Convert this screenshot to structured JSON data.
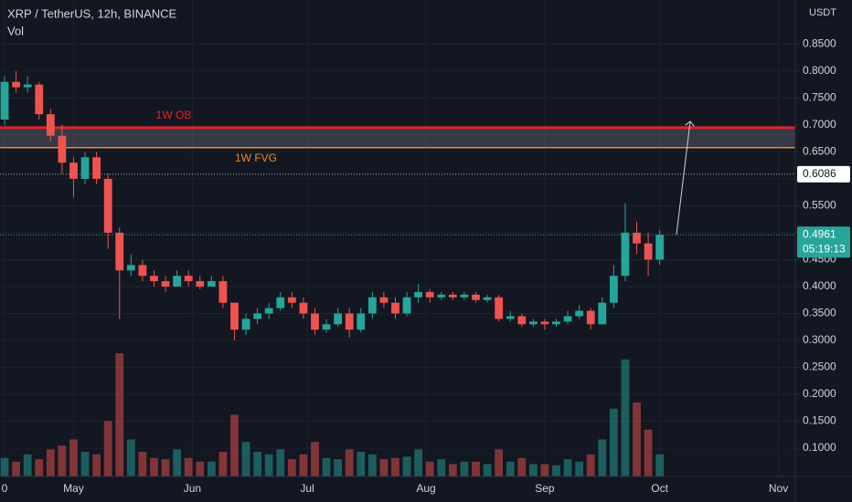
{
  "chart_data": {
    "type": "candlestick",
    "title": "XRP / TetherUS, 12h, BINANCE",
    "volume_label": "Vol",
    "currency": "USDT",
    "x": [
      0,
      3,
      6,
      9,
      12,
      15,
      18,
      21,
      24,
      27,
      30,
      33,
      36,
      39,
      42,
      45,
      48,
      51,
      54,
      57,
      60,
      63,
      66,
      69,
      72,
      75,
      78,
      81,
      84,
      87,
      90,
      93,
      96,
      99,
      102,
      105,
      108,
      111,
      114,
      117,
      120,
      123,
      126,
      129,
      132,
      135,
      138,
      141,
      144,
      147,
      150,
      153,
      156,
      159,
      162,
      165,
      168,
      171
    ],
    "open": [
      0.71,
      0.78,
      0.77,
      0.775,
      0.72,
      0.68,
      0.63,
      0.6,
      0.64,
      0.6,
      0.5,
      0.43,
      0.44,
      0.42,
      0.41,
      0.4,
      0.42,
      0.41,
      0.4,
      0.41,
      0.37,
      0.32,
      0.34,
      0.35,
      0.36,
      0.38,
      0.37,
      0.35,
      0.32,
      0.33,
      0.35,
      0.32,
      0.35,
      0.38,
      0.37,
      0.35,
      0.38,
      0.39,
      0.38,
      0.385,
      0.38,
      0.385,
      0.375,
      0.38,
      0.34,
      0.345,
      0.33,
      0.335,
      0.33,
      0.335,
      0.345,
      0.355,
      0.33,
      0.37,
      0.42,
      0.5,
      0.48,
      0.45
    ],
    "high": [
      0.79,
      0.8,
      0.79,
      0.78,
      0.73,
      0.7,
      0.64,
      0.65,
      0.65,
      0.61,
      0.51,
      0.46,
      0.45,
      0.43,
      0.42,
      0.43,
      0.43,
      0.42,
      0.42,
      0.42,
      0.37,
      0.35,
      0.36,
      0.37,
      0.39,
      0.39,
      0.38,
      0.36,
      0.34,
      0.36,
      0.36,
      0.36,
      0.39,
      0.39,
      0.38,
      0.39,
      0.405,
      0.395,
      0.39,
      0.39,
      0.39,
      0.39,
      0.385,
      0.385,
      0.355,
      0.35,
      0.34,
      0.34,
      0.34,
      0.355,
      0.365,
      0.36,
      0.38,
      0.44,
      0.555,
      0.52,
      0.5,
      0.505
    ],
    "low": [
      0.7,
      0.76,
      0.76,
      0.71,
      0.67,
      0.61,
      0.565,
      0.59,
      0.59,
      0.47,
      0.34,
      0.42,
      0.41,
      0.4,
      0.39,
      0.4,
      0.4,
      0.395,
      0.4,
      0.36,
      0.3,
      0.31,
      0.33,
      0.34,
      0.355,
      0.36,
      0.34,
      0.31,
      0.315,
      0.325,
      0.305,
      0.315,
      0.34,
      0.36,
      0.34,
      0.345,
      0.37,
      0.37,
      0.375,
      0.375,
      0.375,
      0.37,
      0.37,
      0.335,
      0.335,
      0.325,
      0.325,
      0.32,
      0.325,
      0.33,
      0.34,
      0.32,
      0.33,
      0.36,
      0.41,
      0.46,
      0.42,
      0.44
    ],
    "close": [
      0.78,
      0.77,
      0.775,
      0.72,
      0.68,
      0.63,
      0.6,
      0.64,
      0.6,
      0.5,
      0.43,
      0.44,
      0.42,
      0.41,
      0.4,
      0.42,
      0.41,
      0.4,
      0.41,
      0.37,
      0.32,
      0.34,
      0.35,
      0.36,
      0.38,
      0.37,
      0.35,
      0.32,
      0.33,
      0.35,
      0.32,
      0.35,
      0.38,
      0.37,
      0.35,
      0.38,
      0.39,
      0.38,
      0.385,
      0.38,
      0.385,
      0.375,
      0.38,
      0.34,
      0.345,
      0.33,
      0.335,
      0.33,
      0.335,
      0.345,
      0.355,
      0.33,
      0.37,
      0.42,
      0.5,
      0.48,
      0.45,
      0.4961
    ],
    "volume": [
      15,
      12,
      18,
      14,
      22,
      25,
      30,
      20,
      18,
      45,
      100,
      30,
      20,
      15,
      14,
      22,
      15,
      12,
      12,
      20,
      50,
      28,
      20,
      18,
      22,
      14,
      18,
      28,
      15,
      14,
      22,
      20,
      18,
      14,
      15,
      16,
      22,
      12,
      14,
      10,
      12,
      12,
      10,
      22,
      12,
      15,
      10,
      10,
      9,
      14,
      12,
      18,
      30,
      55,
      95,
      60,
      38,
      18
    ],
    "up_color": "#26a69a",
    "down_color": "#ef5350",
    "xlim": [
      -1.2,
      206.4
    ],
    "xticks": [
      0,
      {
        "value": 18,
        "label": "May"
      },
      {
        "value": 49,
        "label": "Jun"
      },
      {
        "value": 79,
        "label": "Jul"
      },
      {
        "value": 110,
        "label": "Aug"
      },
      {
        "value": 141,
        "label": "Sep"
      },
      {
        "value": 171,
        "label": "Oct"
      },
      {
        "value": 202,
        "label": "Nov"
      }
    ],
    "ylim": [
      0.0475,
      0.932
    ],
    "yticks": [
      {
        "value": 0.1,
        "label": "0.1000"
      },
      {
        "value": 0.15,
        "label": "0.1500"
      },
      {
        "value": 0.2,
        "label": "0.2000"
      },
      {
        "value": 0.25,
        "label": "0.2500"
      },
      {
        "value": 0.3,
        "label": "0.3000"
      },
      {
        "value": 0.35,
        "label": "0.3500"
      },
      {
        "value": 0.4,
        "label": "0.4000"
      },
      {
        "value": 0.45,
        "label": "0.4500"
      },
      {
        "value": 0.5,
        "label": "0.5000"
      },
      {
        "value": 0.55,
        "label": "0.5500"
      },
      {
        "value": 0.6,
        "label": "0.6000"
      },
      {
        "value": 0.65,
        "label": "0.6500"
      },
      {
        "value": 0.7,
        "label": "0.7000"
      },
      {
        "value": 0.75,
        "label": "0.7500"
      },
      {
        "value": 0.8,
        "label": "0.8000"
      },
      {
        "value": 0.85,
        "label": "0.8500"
      }
    ],
    "volume_lim": [
      0,
      100
    ],
    "grid": true,
    "levels": [
      {
        "label": "1W OB",
        "value": 0.695,
        "color": "#e0232d"
      },
      {
        "label": "1W FVG",
        "value": 0.658,
        "color": "#f08a24"
      }
    ],
    "price_line": 0.6086,
    "last_price": {
      "value": 0.4961,
      "label": "0.4961",
      "countdown": "05:19:13"
    }
  }
}
